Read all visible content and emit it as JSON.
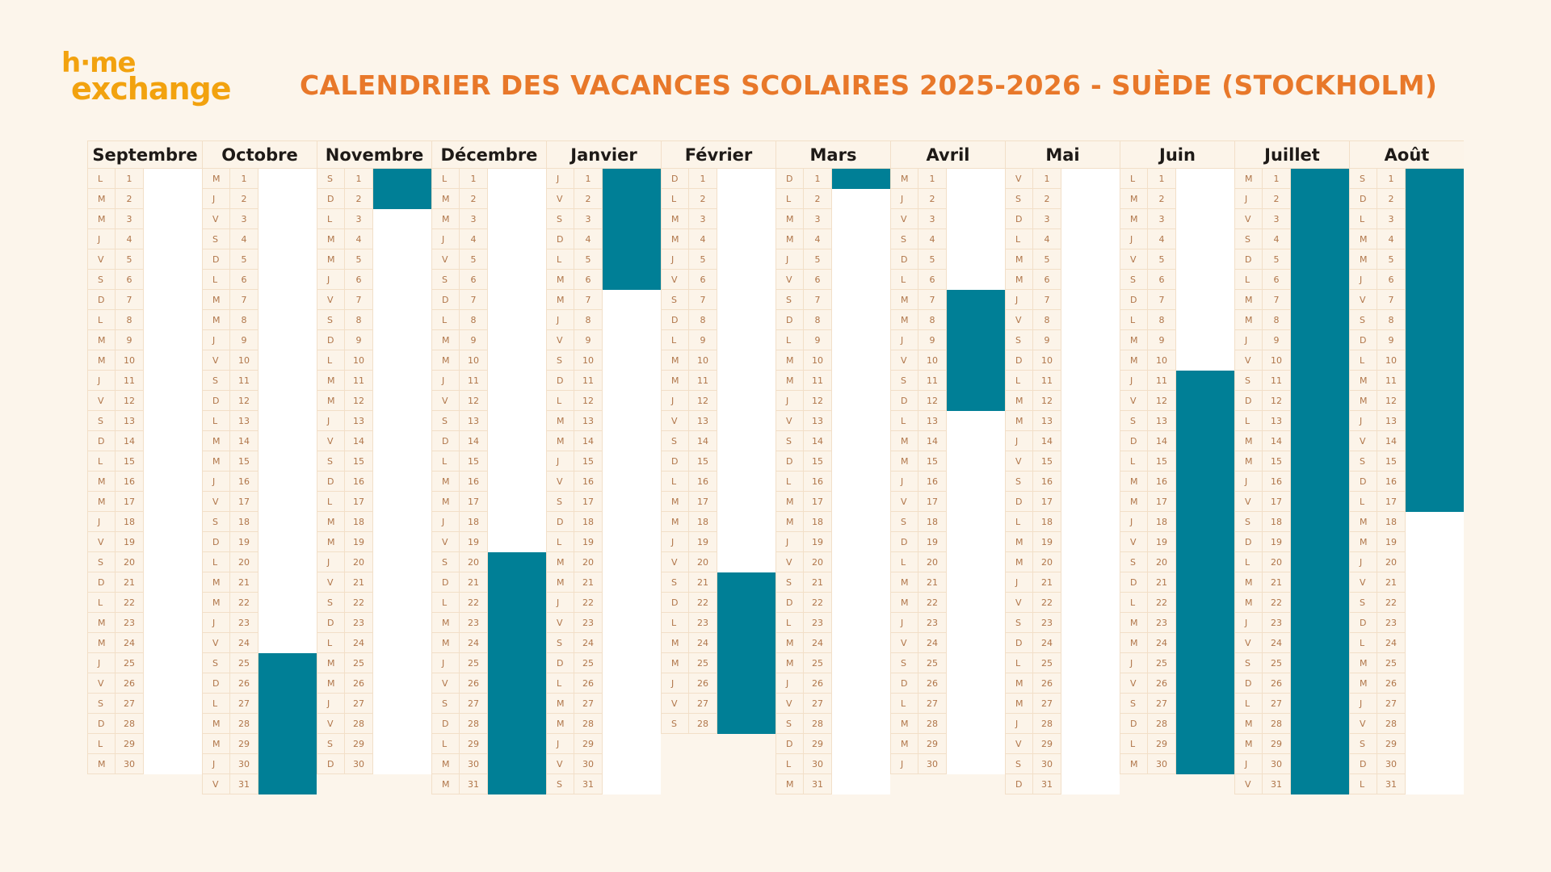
{
  "logo": {
    "line1": "h·me",
    "line2": "exchange"
  },
  "title": "CALENDRIER DES VACANCES SCOLAIRES 2025-2026 - SUÈDE (STOCKHOLM)",
  "colors": {
    "holiday": "#007f96",
    "title": "#e8782a",
    "logo": "#f2a20f",
    "background": "#fcf5eb"
  },
  "months": [
    {
      "name": "Septembre",
      "weekdays": "LMMJVSDLMMJVSDLMMJVSDLMMJVSDLM",
      "holidays": []
    },
    {
      "name": "Octobre",
      "weekdays": "MJVSDLMMJVSDLMMJVSDLMMJVSDLMMJV",
      "holidays": [
        [
          25,
          31
        ]
      ]
    },
    {
      "name": "Novembre",
      "weekdays": "SDLMMJVSDLMMJVSDLMMJVSDLMMJVSD",
      "holidays": [
        [
          1,
          2
        ]
      ]
    },
    {
      "name": "Décembre",
      "weekdays": "LMMJVSDLMMJVSDLMMJVSDLMMJVSDLMM",
      "holidays": [
        [
          20,
          31
        ]
      ]
    },
    {
      "name": "Janvier",
      "weekdays": "JVSDLMMJVSDLMMJVSDLMMJVSDLMMJVS",
      "holidays": [
        [
          1,
          6
        ]
      ]
    },
    {
      "name": "Février",
      "weekdays": "DLMMJVSDLMMJVSDLMMJVSDLMMJVS",
      "holidays": [
        [
          21,
          28
        ]
      ]
    },
    {
      "name": "Mars",
      "weekdays": "DLMMJVSDLMMJVSDLMMJVSDLMMJVSDLM",
      "holidays": [
        [
          1,
          1
        ]
      ]
    },
    {
      "name": "Avril",
      "weekdays": "MJVSDLMMJVSDLMMJVSDLMMJVSDLMMJ",
      "holidays": [
        [
          7,
          12
        ]
      ]
    },
    {
      "name": "Mai",
      "weekdays": "VSDLMMJVSDLMMJVSDLMMJVSDLMMJVSD",
      "holidays": []
    },
    {
      "name": "Juin",
      "weekdays": "LMMJVSDLMMJVSDLMMJVSDLMMJVSDLM",
      "holidays": [
        [
          11,
          30
        ]
      ]
    },
    {
      "name": "Juillet",
      "weekdays": "MJVSDLMMJVSDLMMJVSDLMMJVSDLMMJV",
      "holidays": [
        [
          1,
          31
        ]
      ]
    },
    {
      "name": "Août",
      "weekdays": "SDLMMJVSDLMMJVSDLMMJVSDLMMJVSDL",
      "holidays": [
        [
          1,
          17
        ]
      ]
    }
  ]
}
